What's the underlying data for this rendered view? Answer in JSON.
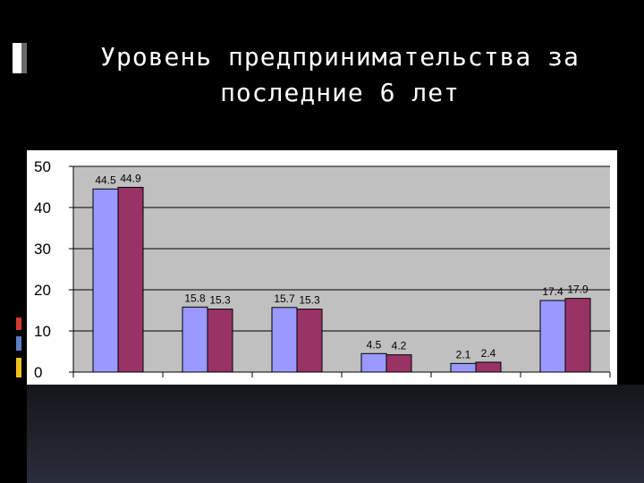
{
  "slide": {
    "title": "Уровень предпринимательства за\nпоследние 6 лет"
  },
  "colors": {
    "series_a": "#9999ff",
    "series_b": "#993366",
    "plot_bg": "#c0c0c0",
    "slide_bg": "#000000"
  },
  "chart_data": {
    "type": "bar",
    "title": "",
    "xlabel": "",
    "ylabel": "",
    "categories": [
      "",
      "",
      "",
      "",
      "",
      ""
    ],
    "ylim": [
      0,
      50
    ],
    "yticks": [
      "0",
      "10",
      "20",
      "30",
      "40",
      "50"
    ],
    "grid": true,
    "legend": "none",
    "series": [
      {
        "values": [
          44.5,
          15.8,
          15.7,
          4.5,
          2.1,
          17.4
        ],
        "labels": [
          "44.5",
          "15.8",
          "15.7",
          "4.5",
          "2.1",
          "17.4"
        ]
      },
      {
        "values": [
          44.9,
          15.3,
          15.3,
          4.2,
          2.4,
          17.9
        ],
        "labels": [
          "44.9",
          "15.3",
          "15.3",
          "4.2",
          "2.4",
          "17.9"
        ]
      }
    ]
  }
}
